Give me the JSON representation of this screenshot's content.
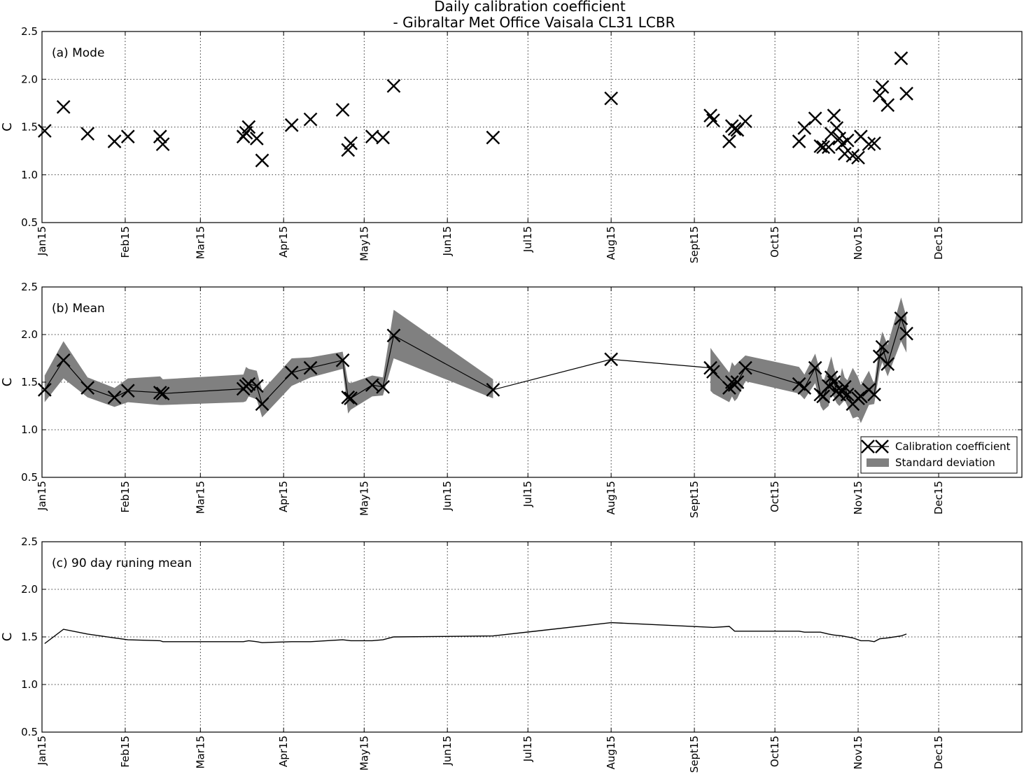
{
  "title_lines": [
    "Daily calibration coefficient",
    "- Gibraltar Met Office Vaisala CL31 LCBR"
  ],
  "chart_data": [
    {
      "type": "scatter",
      "panel_label": "(a) Mode",
      "ylabel": "C",
      "ylim": [
        0.5,
        2.5
      ],
      "yticks": [
        0.5,
        1.0,
        1.5,
        2.0,
        2.5
      ],
      "ytick_labels": [
        "0.5",
        "1.0",
        "1.5",
        "2.0",
        "2.5"
      ],
      "xlim": [
        "2015-01-01",
        "2016-01-01"
      ],
      "xticks": [
        "2015-01-01",
        "2015-02-01",
        "2015-03-01",
        "2015-04-01",
        "2015-05-01",
        "2015-06-01",
        "2015-07-01",
        "2015-08-01",
        "2015-09-01",
        "2015-10-01",
        "2015-11-01",
        "2015-12-01"
      ],
      "xtick_labels": [
        "Jan15",
        "Feb15",
        "Mar15",
        "Apr15",
        "May15",
        "Jun15",
        "Jul15",
        "Aug15",
        "Sept15",
        "Oct15",
        "Nov15",
        "Dec15"
      ],
      "grid": true,
      "marker": "x",
      "x": [
        "2015-01-02",
        "2015-01-09",
        "2015-01-18",
        "2015-01-28",
        "2015-02-02",
        "2015-02-14",
        "2015-02-15",
        "2015-03-17",
        "2015-03-18",
        "2015-03-19",
        "2015-03-22",
        "2015-03-24",
        "2015-04-04",
        "2015-04-11",
        "2015-04-23",
        "2015-04-25",
        "2015-04-26",
        "2015-05-04",
        "2015-05-08",
        "2015-05-12",
        "2015-06-18",
        "2015-08-01",
        "2015-09-07",
        "2015-09-08",
        "2015-09-14",
        "2015-09-15",
        "2015-09-16",
        "2015-09-17",
        "2015-09-20",
        "2015-10-10",
        "2015-10-12",
        "2015-10-16",
        "2015-10-18",
        "2015-10-19",
        "2015-10-21",
        "2015-10-22",
        "2015-10-23",
        "2015-10-24",
        "2015-10-25",
        "2015-10-26",
        "2015-10-27",
        "2015-10-28",
        "2015-10-30",
        "2015-11-01",
        "2015-11-02",
        "2015-11-05",
        "2015-11-07",
        "2015-11-09",
        "2015-11-10",
        "2015-11-12",
        "2015-11-17",
        "2015-11-19"
      ],
      "y": [
        1.46,
        1.71,
        1.43,
        1.35,
        1.4,
        1.4,
        1.32,
        1.4,
        1.44,
        1.5,
        1.38,
        1.15,
        1.52,
        1.58,
        1.68,
        1.26,
        1.33,
        1.4,
        1.39,
        1.93,
        1.39,
        1.8,
        1.62,
        1.57,
        1.35,
        1.51,
        1.48,
        1.47,
        1.56,
        1.35,
        1.49,
        1.59,
        1.3,
        1.29,
        1.29,
        1.43,
        1.62,
        1.49,
        1.38,
        1.32,
        1.22,
        1.36,
        1.2,
        1.18,
        1.4,
        1.32,
        1.33,
        1.83,
        1.92,
        1.73,
        2.22,
        1.85
      ]
    },
    {
      "type": "line",
      "panel_label": "(b) Mean",
      "ylabel": "C",
      "ylim": [
        0.5,
        2.5
      ],
      "yticks": [
        0.5,
        1.0,
        1.5,
        2.0,
        2.5
      ],
      "ytick_labels": [
        "0.5",
        "1.0",
        "1.5",
        "2.0",
        "2.5"
      ],
      "xlim": [
        "2015-01-01",
        "2016-01-01"
      ],
      "xticks": [
        "2015-01-01",
        "2015-02-01",
        "2015-03-01",
        "2015-04-01",
        "2015-05-01",
        "2015-06-01",
        "2015-07-01",
        "2015-08-01",
        "2015-09-01",
        "2015-10-01",
        "2015-11-01",
        "2015-12-01"
      ],
      "xtick_labels": [
        "Jan15",
        "Feb15",
        "Mar15",
        "Apr15",
        "May15",
        "Jun15",
        "Jul15",
        "Aug15",
        "Sept15",
        "Oct15",
        "Nov15",
        "Dec15"
      ],
      "grid": true,
      "legend_position": "bottom-right",
      "series": [
        {
          "name": "Calibration coefficient",
          "marker": "x",
          "color": "#000000",
          "x": [
            "2015-01-02",
            "2015-01-09",
            "2015-01-18",
            "2015-01-28",
            "2015-02-02",
            "2015-02-14",
            "2015-02-15",
            "2015-03-17",
            "2015-03-18",
            "2015-03-19",
            "2015-03-22",
            "2015-03-24",
            "2015-04-04",
            "2015-04-11",
            "2015-04-23",
            "2015-04-25",
            "2015-04-26",
            "2015-05-04",
            "2015-05-08",
            "2015-05-12",
            "2015-06-18",
            "2015-08-01",
            "2015-09-07",
            "2015-09-08",
            "2015-09-14",
            "2015-09-15",
            "2015-09-16",
            "2015-09-17",
            "2015-09-20",
            "2015-10-10",
            "2015-10-12",
            "2015-10-16",
            "2015-10-18",
            "2015-10-19",
            "2015-10-21",
            "2015-10-22",
            "2015-10-23",
            "2015-10-24",
            "2015-10-25",
            "2015-10-26",
            "2015-10-27",
            "2015-10-28",
            "2015-10-30",
            "2015-11-01",
            "2015-11-02",
            "2015-11-05",
            "2015-11-07",
            "2015-11-09",
            "2015-11-10",
            "2015-11-12",
            "2015-11-17",
            "2015-11-19"
          ],
          "y": [
            1.42,
            1.73,
            1.44,
            1.34,
            1.41,
            1.39,
            1.38,
            1.43,
            1.46,
            1.48,
            1.46,
            1.27,
            1.6,
            1.65,
            1.73,
            1.34,
            1.33,
            1.47,
            1.45,
            1.99,
            1.42,
            1.74,
            1.65,
            1.61,
            1.44,
            1.5,
            1.47,
            1.5,
            1.65,
            1.48,
            1.44,
            1.65,
            1.37,
            1.35,
            1.46,
            1.55,
            1.5,
            1.41,
            1.37,
            1.4,
            1.45,
            1.37,
            1.27,
            1.33,
            1.35,
            1.42,
            1.37,
            1.77,
            1.87,
            1.69,
            2.17,
            2.01
          ]
        },
        {
          "name": "Standard deviation",
          "color": "#808080",
          "x": [
            "2015-01-02",
            "2015-01-09",
            "2015-01-18",
            "2015-01-28",
            "2015-02-02",
            "2015-02-14",
            "2015-02-15",
            "2015-03-17",
            "2015-03-18",
            "2015-03-19",
            "2015-03-22",
            "2015-03-24",
            "2015-04-04",
            "2015-04-11",
            "2015-04-23",
            "2015-04-25",
            "2015-04-26",
            "2015-05-04",
            "2015-05-08",
            "2015-05-12",
            "2015-06-18",
            "2015-09-07",
            "2015-09-08",
            "2015-09-14",
            "2015-09-15",
            "2015-09-16",
            "2015-09-17",
            "2015-09-20",
            "2015-10-10",
            "2015-10-12",
            "2015-10-16",
            "2015-10-18",
            "2015-10-19",
            "2015-10-21",
            "2015-10-22",
            "2015-10-23",
            "2015-10-24",
            "2015-10-25",
            "2015-10-26",
            "2015-10-27",
            "2015-10-28",
            "2015-10-30",
            "2015-11-01",
            "2015-11-02",
            "2015-11-05",
            "2015-11-07",
            "2015-11-09",
            "2015-11-10",
            "2015-11-12",
            "2015-11-17",
            "2015-11-19"
          ],
          "upper": [
            1.57,
            1.93,
            1.55,
            1.44,
            1.54,
            1.56,
            1.53,
            1.58,
            1.66,
            1.64,
            1.62,
            1.41,
            1.75,
            1.76,
            1.82,
            1.5,
            1.49,
            1.57,
            1.55,
            2.26,
            1.53,
            1.86,
            1.82,
            1.6,
            1.71,
            1.67,
            1.7,
            1.78,
            1.66,
            1.58,
            1.8,
            1.6,
            1.5,
            1.67,
            1.77,
            1.65,
            1.56,
            1.5,
            1.65,
            1.55,
            1.52,
            1.65,
            1.55,
            1.47,
            1.62,
            1.48,
            1.91,
            2.03,
            1.89,
            2.39,
            2.18
          ],
          "lower": [
            1.29,
            1.54,
            1.34,
            1.24,
            1.29,
            1.26,
            1.26,
            1.29,
            1.3,
            1.35,
            1.32,
            1.13,
            1.46,
            1.55,
            1.64,
            1.17,
            1.21,
            1.35,
            1.36,
            1.75,
            1.33,
            1.41,
            1.38,
            1.29,
            1.35,
            1.3,
            1.33,
            1.51,
            1.38,
            1.32,
            1.49,
            1.25,
            1.2,
            1.25,
            1.38,
            1.34,
            1.28,
            1.25,
            1.28,
            1.31,
            1.25,
            1.12,
            1.14,
            1.07,
            1.26,
            1.27,
            1.62,
            1.71,
            1.56,
            1.93,
            1.81
          ]
        }
      ]
    },
    {
      "type": "line",
      "panel_label": "(c) 90 day runing mean",
      "ylabel": "C",
      "ylim": [
        0.5,
        2.5
      ],
      "yticks": [
        0.5,
        1.0,
        1.5,
        2.0,
        2.5
      ],
      "ytick_labels": [
        "0.5",
        "1.0",
        "1.5",
        "2.0",
        "2.5"
      ],
      "xlim": [
        "2015-01-01",
        "2016-01-01"
      ],
      "xticks": [
        "2015-01-01",
        "2015-02-01",
        "2015-03-01",
        "2015-04-01",
        "2015-05-01",
        "2015-06-01",
        "2015-07-01",
        "2015-08-01",
        "2015-09-01",
        "2015-10-01",
        "2015-11-01",
        "2015-12-01"
      ],
      "xtick_labels": [
        "Jan15",
        "Feb15",
        "Mar15",
        "Apr15",
        "May15",
        "Jun15",
        "Jul15",
        "Aug15",
        "Sept15",
        "Oct15",
        "Nov15",
        "Dec15"
      ],
      "grid": true,
      "x": [
        "2015-01-02",
        "2015-01-09",
        "2015-01-18",
        "2015-01-28",
        "2015-02-02",
        "2015-02-14",
        "2015-02-15",
        "2015-03-17",
        "2015-03-19",
        "2015-03-22",
        "2015-03-24",
        "2015-04-04",
        "2015-04-11",
        "2015-04-23",
        "2015-04-26",
        "2015-05-04",
        "2015-05-08",
        "2015-05-12",
        "2015-06-18",
        "2015-08-01",
        "2015-09-08",
        "2015-09-14",
        "2015-09-16",
        "2015-09-20",
        "2015-10-10",
        "2015-10-12",
        "2015-10-16",
        "2015-10-18",
        "2015-10-21",
        "2015-10-23",
        "2015-10-26",
        "2015-10-30",
        "2015-11-02",
        "2015-11-05",
        "2015-11-07",
        "2015-11-09",
        "2015-11-12",
        "2015-11-17",
        "2015-11-19"
      ],
      "y": [
        1.43,
        1.58,
        1.53,
        1.49,
        1.47,
        1.46,
        1.45,
        1.45,
        1.46,
        1.45,
        1.44,
        1.45,
        1.45,
        1.47,
        1.46,
        1.46,
        1.47,
        1.5,
        1.51,
        1.65,
        1.6,
        1.61,
        1.56,
        1.56,
        1.56,
        1.55,
        1.55,
        1.55,
        1.53,
        1.52,
        1.51,
        1.49,
        1.46,
        1.46,
        1.45,
        1.48,
        1.49,
        1.51,
        1.53
      ]
    }
  ]
}
